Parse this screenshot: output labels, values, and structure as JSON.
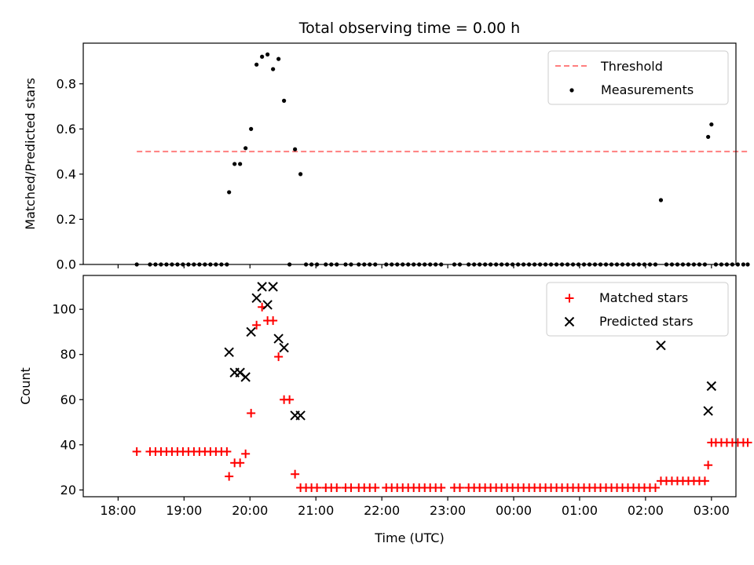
{
  "chart_data": [
    {
      "type": "scatter",
      "panel": "top",
      "title": "Total observing time = 0.00 h",
      "xlabel": "",
      "ylabel": "Matched/Predicted stars",
      "ylim": [
        0,
        0.98
      ],
      "yticks": [
        "0.0",
        "0.2",
        "0.4",
        "0.6",
        "0.8"
      ],
      "xticks": [],
      "legend_placement": "top-right",
      "threshold": {
        "name": "Threshold",
        "y": 0.5,
        "x_start": "18:17",
        "x_end": "03:33",
        "color": "#ff7f7f",
        "style": "dashed"
      },
      "series": [
        {
          "name": "Measurements",
          "color": "#000000",
          "marker": "dot",
          "points": [
            [
              "18:17",
              0.0
            ],
            [
              "18:29",
              0.0
            ],
            [
              "18:34",
              0.0
            ],
            [
              "18:39",
              0.0
            ],
            [
              "18:44",
              0.0
            ],
            [
              "18:49",
              0.0
            ],
            [
              "18:54",
              0.0
            ],
            [
              "18:59",
              0.0
            ],
            [
              "19:04",
              0.0
            ],
            [
              "19:09",
              0.0
            ],
            [
              "19:14",
              0.0
            ],
            [
              "19:19",
              0.0
            ],
            [
              "19:24",
              0.0
            ],
            [
              "19:29",
              0.0
            ],
            [
              "19:34",
              0.0
            ],
            [
              "19:39",
              0.0
            ],
            [
              "19:41",
              0.32
            ],
            [
              "19:46",
              0.445
            ],
            [
              "19:51",
              0.445
            ],
            [
              "19:56",
              0.515
            ],
            [
              "20:01",
              0.6
            ],
            [
              "20:06",
              0.885
            ],
            [
              "20:11",
              0.92
            ],
            [
              "20:16",
              0.93
            ],
            [
              "20:21",
              0.865
            ],
            [
              "20:26",
              0.91
            ],
            [
              "20:31",
              0.725
            ],
            [
              "20:36",
              0.0
            ],
            [
              "20:41",
              0.51
            ],
            [
              "20:46",
              0.4
            ],
            [
              "20:51",
              0.0
            ],
            [
              "20:56",
              0.0
            ],
            [
              "21:01",
              0.0
            ],
            [
              "21:09",
              0.0
            ],
            [
              "21:14",
              0.0
            ],
            [
              "21:19",
              0.0
            ],
            [
              "21:27",
              0.0
            ],
            [
              "21:32",
              0.0
            ],
            [
              "21:39",
              0.0
            ],
            [
              "21:44",
              0.0
            ],
            [
              "21:49",
              0.0
            ],
            [
              "21:54",
              0.0
            ],
            [
              "22:04",
              0.0
            ],
            [
              "22:09",
              0.0
            ],
            [
              "22:14",
              0.0
            ],
            [
              "22:19",
              0.0
            ],
            [
              "22:24",
              0.0
            ],
            [
              "22:29",
              0.0
            ],
            [
              "22:34",
              0.0
            ],
            [
              "22:39",
              0.0
            ],
            [
              "22:44",
              0.0
            ],
            [
              "22:49",
              0.0
            ],
            [
              "22:54",
              0.0
            ],
            [
              "23:06",
              0.0
            ],
            [
              "23:11",
              0.0
            ],
            [
              "23:19",
              0.0
            ],
            [
              "23:24",
              0.0
            ],
            [
              "23:29",
              0.0
            ],
            [
              "23:34",
              0.0
            ],
            [
              "23:39",
              0.0
            ],
            [
              "23:44",
              0.0
            ],
            [
              "23:49",
              0.0
            ],
            [
              "23:54",
              0.0
            ],
            [
              "23:59",
              0.0
            ],
            [
              "00:04",
              0.0
            ],
            [
              "00:09",
              0.0
            ],
            [
              "00:14",
              0.0
            ],
            [
              "00:19",
              0.0
            ],
            [
              "00:24",
              0.0
            ],
            [
              "00:29",
              0.0
            ],
            [
              "00:34",
              0.0
            ],
            [
              "00:39",
              0.0
            ],
            [
              "00:44",
              0.0
            ],
            [
              "00:49",
              0.0
            ],
            [
              "00:54",
              0.0
            ],
            [
              "00:59",
              0.0
            ],
            [
              "01:04",
              0.0
            ],
            [
              "01:09",
              0.0
            ],
            [
              "01:14",
              0.0
            ],
            [
              "01:19",
              0.0
            ],
            [
              "01:24",
              0.0
            ],
            [
              "01:29",
              0.0
            ],
            [
              "01:34",
              0.0
            ],
            [
              "01:39",
              0.0
            ],
            [
              "01:44",
              0.0
            ],
            [
              "01:49",
              0.0
            ],
            [
              "01:54",
              0.0
            ],
            [
              "01:59",
              0.0
            ],
            [
              "02:04",
              0.0
            ],
            [
              "02:09",
              0.0
            ],
            [
              "02:14",
              0.285
            ],
            [
              "02:19",
              0.0
            ],
            [
              "02:24",
              0.0
            ],
            [
              "02:29",
              0.0
            ],
            [
              "02:34",
              0.0
            ],
            [
              "02:39",
              0.0
            ],
            [
              "02:44",
              0.0
            ],
            [
              "02:49",
              0.0
            ],
            [
              "02:54",
              0.0
            ],
            [
              "02:57",
              0.565
            ],
            [
              "03:00",
              0.62
            ],
            [
              "03:04",
              0.0
            ],
            [
              "03:09",
              0.0
            ],
            [
              "03:14",
              0.0
            ],
            [
              "03:19",
              0.0
            ],
            [
              "03:24",
              0.0
            ],
            [
              "03:29",
              0.0
            ],
            [
              "03:33",
              0.0
            ]
          ]
        }
      ]
    },
    {
      "type": "scatter",
      "panel": "bottom",
      "title": "",
      "xlabel": "Time (UTC)",
      "ylabel": "Count",
      "ylim": [
        17,
        115
      ],
      "yticks": [
        "20",
        "40",
        "60",
        "80",
        "100"
      ],
      "xticks": [
        "18:00",
        "19:00",
        "20:00",
        "21:00",
        "22:00",
        "23:00",
        "00:00",
        "01:00",
        "02:00",
        "03:00"
      ],
      "legend_placement": "top-right",
      "series": [
        {
          "name": "Matched stars",
          "color": "#ff0000",
          "marker": "plus",
          "points": [
            [
              "18:17",
              37
            ],
            [
              "18:29",
              37
            ],
            [
              "18:34",
              37
            ],
            [
              "18:39",
              37
            ],
            [
              "18:44",
              37
            ],
            [
              "18:49",
              37
            ],
            [
              "18:54",
              37
            ],
            [
              "18:59",
              37
            ],
            [
              "19:04",
              37
            ],
            [
              "19:09",
              37
            ],
            [
              "19:14",
              37
            ],
            [
              "19:19",
              37
            ],
            [
              "19:24",
              37
            ],
            [
              "19:29",
              37
            ],
            [
              "19:34",
              37
            ],
            [
              "19:39",
              37
            ],
            [
              "19:41",
              26
            ],
            [
              "19:46",
              32
            ],
            [
              "19:51",
              32
            ],
            [
              "19:56",
              36
            ],
            [
              "20:01",
              54
            ],
            [
              "20:06",
              93
            ],
            [
              "20:11",
              101
            ],
            [
              "20:16",
              95
            ],
            [
              "20:21",
              95
            ],
            [
              "20:26",
              79
            ],
            [
              "20:31",
              60
            ],
            [
              "20:36",
              60
            ],
            [
              "20:41",
              27
            ],
            [
              "20:46",
              21
            ],
            [
              "20:51",
              21
            ],
            [
              "20:56",
              21
            ],
            [
              "21:01",
              21
            ],
            [
              "21:09",
              21
            ],
            [
              "21:14",
              21
            ],
            [
              "21:19",
              21
            ],
            [
              "21:27",
              21
            ],
            [
              "21:32",
              21
            ],
            [
              "21:39",
              21
            ],
            [
              "21:44",
              21
            ],
            [
              "21:49",
              21
            ],
            [
              "21:54",
              21
            ],
            [
              "22:04",
              21
            ],
            [
              "22:09",
              21
            ],
            [
              "22:14",
              21
            ],
            [
              "22:19",
              21
            ],
            [
              "22:24",
              21
            ],
            [
              "22:29",
              21
            ],
            [
              "22:34",
              21
            ],
            [
              "22:39",
              21
            ],
            [
              "22:44",
              21
            ],
            [
              "22:49",
              21
            ],
            [
              "22:54",
              21
            ],
            [
              "23:06",
              21
            ],
            [
              "23:11",
              21
            ],
            [
              "23:19",
              21
            ],
            [
              "23:24",
              21
            ],
            [
              "23:29",
              21
            ],
            [
              "23:34",
              21
            ],
            [
              "23:39",
              21
            ],
            [
              "23:44",
              21
            ],
            [
              "23:49",
              21
            ],
            [
              "23:54",
              21
            ],
            [
              "23:59",
              21
            ],
            [
              "00:04",
              21
            ],
            [
              "00:09",
              21
            ],
            [
              "00:14",
              21
            ],
            [
              "00:19",
              21
            ],
            [
              "00:24",
              21
            ],
            [
              "00:29",
              21
            ],
            [
              "00:34",
              21
            ],
            [
              "00:39",
              21
            ],
            [
              "00:44",
              21
            ],
            [
              "00:49",
              21
            ],
            [
              "00:54",
              21
            ],
            [
              "00:59",
              21
            ],
            [
              "01:04",
              21
            ],
            [
              "01:09",
              21
            ],
            [
              "01:14",
              21
            ],
            [
              "01:19",
              21
            ],
            [
              "01:24",
              21
            ],
            [
              "01:29",
              21
            ],
            [
              "01:34",
              21
            ],
            [
              "01:39",
              21
            ],
            [
              "01:44",
              21
            ],
            [
              "01:49",
              21
            ],
            [
              "01:54",
              21
            ],
            [
              "01:59",
              21
            ],
            [
              "02:04",
              21
            ],
            [
              "02:09",
              21
            ],
            [
              "02:14",
              24
            ],
            [
              "02:19",
              24
            ],
            [
              "02:24",
              24
            ],
            [
              "02:29",
              24
            ],
            [
              "02:34",
              24
            ],
            [
              "02:39",
              24
            ],
            [
              "02:44",
              24
            ],
            [
              "02:49",
              24
            ],
            [
              "02:54",
              24
            ],
            [
              "02:57",
              31
            ],
            [
              "03:00",
              41
            ],
            [
              "03:04",
              41
            ],
            [
              "03:09",
              41
            ],
            [
              "03:14",
              41
            ],
            [
              "03:19",
              41
            ],
            [
              "03:24",
              41
            ],
            [
              "03:29",
              41
            ],
            [
              "03:33",
              41
            ]
          ]
        },
        {
          "name": "Predicted stars",
          "color": "#000000",
          "marker": "x",
          "points": [
            [
              "19:41",
              81
            ],
            [
              "19:46",
              72
            ],
            [
              "19:51",
              72
            ],
            [
              "19:56",
              70
            ],
            [
              "20:01",
              90
            ],
            [
              "20:06",
              105
            ],
            [
              "20:11",
              110
            ],
            [
              "20:16",
              102
            ],
            [
              "20:21",
              110
            ],
            [
              "20:26",
              87
            ],
            [
              "20:31",
              83
            ],
            [
              "20:41",
              53
            ],
            [
              "20:46",
              53
            ],
            [
              "02:14",
              84
            ],
            [
              "02:57",
              55
            ],
            [
              "03:00",
              66
            ]
          ]
        }
      ]
    }
  ]
}
